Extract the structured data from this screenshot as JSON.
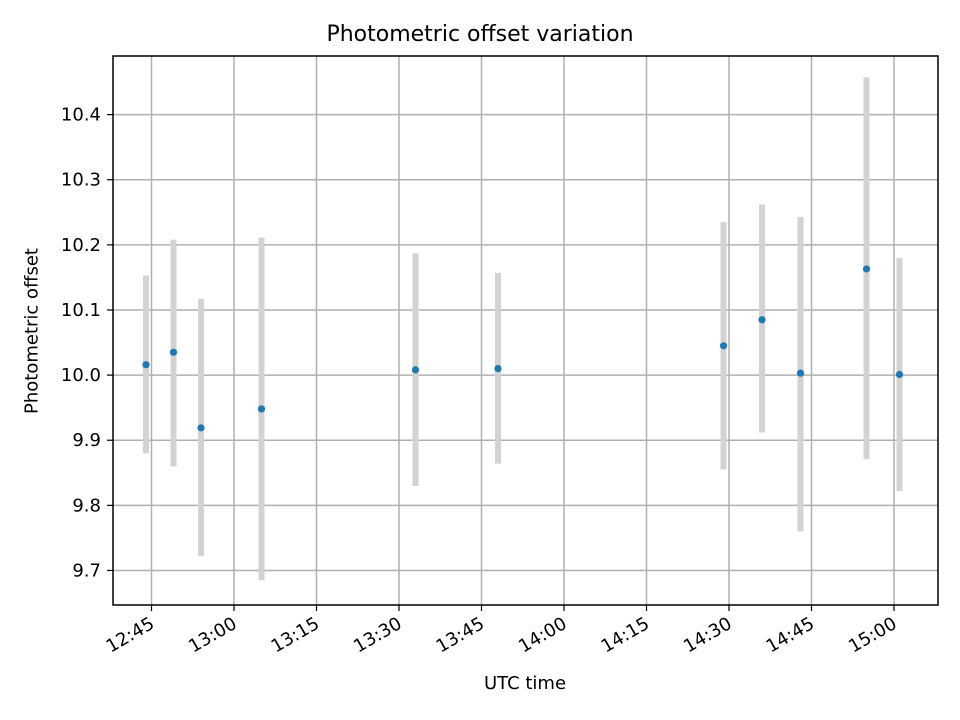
{
  "chart_data": {
    "type": "scatter",
    "title": "Photometric offset variation",
    "xlabel": "UTC time",
    "ylabel": "Photometric offset",
    "xlim": [
      "12:38",
      "15:08"
    ],
    "ylim": [
      9.647,
      10.49
    ],
    "xticks": [
      "12:45",
      "13:00",
      "13:15",
      "13:30",
      "13:45",
      "14:00",
      "14:15",
      "14:30",
      "14:45",
      "15:00"
    ],
    "yticks": [
      9.7,
      9.8,
      9.9,
      10.0,
      10.1,
      10.2,
      10.3,
      10.4
    ],
    "grid": true,
    "marker_color": "#1f77b4",
    "errorbar_color": "#d3d3d3",
    "points": [
      {
        "x": "12:44",
        "y": 10.016,
        "ylow": 9.88,
        "yhigh": 10.153
      },
      {
        "x": "12:49",
        "y": 10.035,
        "ylow": 9.86,
        "yhigh": 10.208
      },
      {
        "x": "12:54",
        "y": 9.919,
        "ylow": 9.722,
        "yhigh": 10.117
      },
      {
        "x": "13:05",
        "y": 9.948,
        "ylow": 9.685,
        "yhigh": 10.211
      },
      {
        "x": "13:33",
        "y": 10.008,
        "ylow": 9.83,
        "yhigh": 10.187
      },
      {
        "x": "13:48",
        "y": 10.01,
        "ylow": 9.864,
        "yhigh": 10.157
      },
      {
        "x": "14:29",
        "y": 10.045,
        "ylow": 9.855,
        "yhigh": 10.235
      },
      {
        "x": "14:36",
        "y": 10.085,
        "ylow": 9.912,
        "yhigh": 10.262
      },
      {
        "x": "14:43",
        "y": 10.003,
        "ylow": 9.76,
        "yhigh": 10.243
      },
      {
        "x": "14:55",
        "y": 10.163,
        "ylow": 9.871,
        "yhigh": 10.457
      },
      {
        "x": "15:01",
        "y": 10.001,
        "ylow": 9.822,
        "yhigh": 10.18
      }
    ]
  }
}
